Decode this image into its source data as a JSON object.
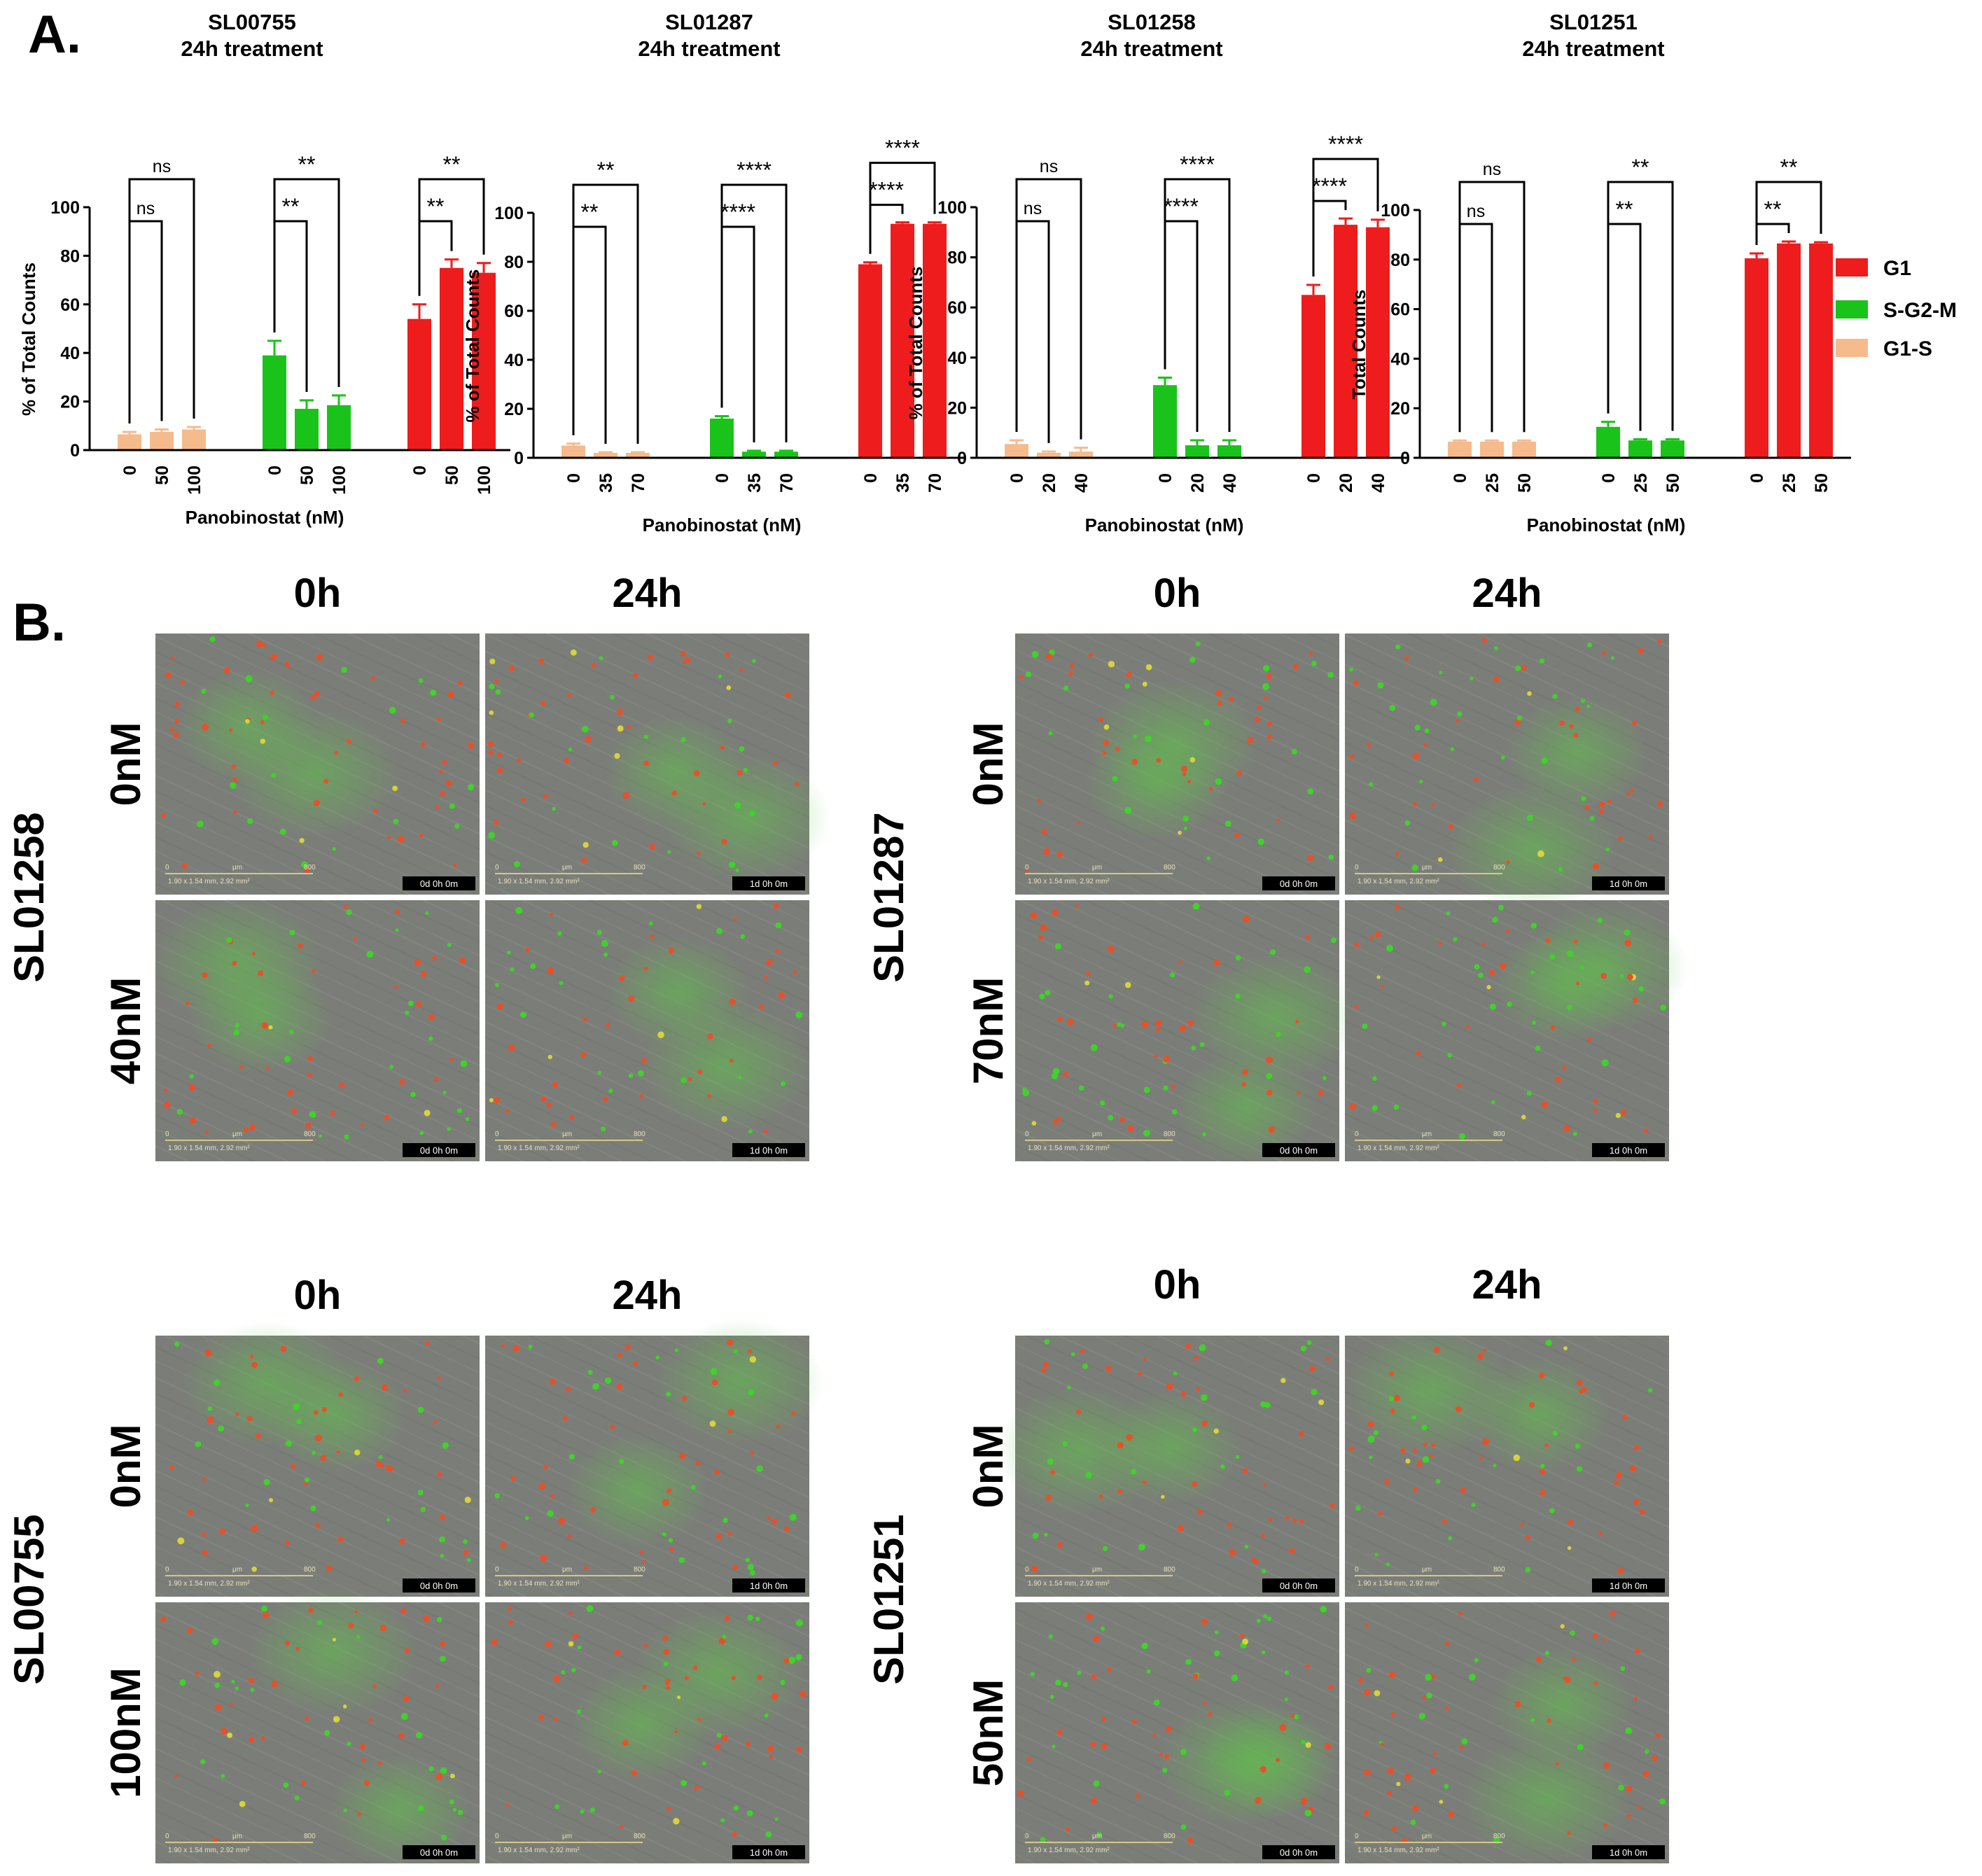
{
  "panel_a_label": "A.",
  "panel_b_label": "B.",
  "legend": {
    "items": [
      {
        "label": "G1",
        "color": "#ee1c1c"
      },
      {
        "label": "S-G2-M",
        "color": "#19c319"
      },
      {
        "label": "G1-S",
        "color": "#f5bb8d"
      }
    ]
  },
  "microscopy": {
    "time_labels": [
      "0h",
      "24h"
    ],
    "scale_text": "1.90 x 1.54 mm, 2.92 mm²",
    "scale_unit": "μm",
    "scale_zero": "0",
    "scale_max": "800",
    "timestamps": {
      "t0": "0d 0h 0m",
      "t24": "1d 0h 0m"
    },
    "blocks": [
      {
        "sample": "SL01258",
        "doses": [
          "0nM",
          "40nM"
        ]
      },
      {
        "sample": "SL01287",
        "doses": [
          "0nM",
          "70nM"
        ]
      },
      {
        "sample": "SL00755",
        "doses": [
          "0nM",
          "100nM"
        ]
      },
      {
        "sample": "SL01251",
        "doses": [
          "0nM",
          "50nM"
        ]
      }
    ]
  },
  "chart_data": [
    {
      "type": "bar",
      "title": "SL00755",
      "subtitle": "24h treatment",
      "ylabel": "% of Total Counts",
      "xlabel": "Panobinostat (nM)",
      "ylim": [
        0,
        100
      ],
      "yticks": [
        0,
        20,
        40,
        60,
        80,
        100
      ],
      "groups": [
        {
          "name": "G1-S",
          "color": "#f5bb8d",
          "categories": [
            "0",
            "50",
            "100"
          ],
          "values": [
            6.5,
            7.5,
            8.5
          ],
          "errors": [
            1,
            1,
            1
          ]
        },
        {
          "name": "S-G2-M",
          "color": "#19c319",
          "categories": [
            "0",
            "50",
            "100"
          ],
          "values": [
            39,
            17,
            18.5
          ],
          "errors": [
            6,
            3.5,
            4
          ]
        },
        {
          "name": "G1",
          "color": "#ee1c1c",
          "categories": [
            "0",
            "50",
            "100"
          ],
          "values": [
            54,
            75,
            73
          ],
          "errors": [
            6,
            3.5,
            4
          ]
        }
      ],
      "significance": [
        {
          "inner": "ns",
          "outer": "ns"
        },
        {
          "inner": "**",
          "outer": "**"
        },
        {
          "inner": "**",
          "outer": "**"
        }
      ]
    },
    {
      "type": "bar",
      "title": "SL01287",
      "subtitle": "24h treatment",
      "ylabel": "% of Total Counts",
      "xlabel": "Panobinostat (nM)",
      "ylim": [
        0,
        100
      ],
      "yticks": [
        0,
        20,
        40,
        60,
        80,
        100
      ],
      "groups": [
        {
          "name": "G1-S",
          "color": "#f5bb8d",
          "categories": [
            "0",
            "35",
            "70"
          ],
          "values": [
            5,
            2,
            2
          ],
          "errors": [
            0.8,
            0.3,
            0.3
          ]
        },
        {
          "name": "S-G2-M",
          "color": "#19c319",
          "categories": [
            "0",
            "35",
            "70"
          ],
          "values": [
            16,
            2.5,
            2.5
          ],
          "errors": [
            1,
            0.4,
            0.4
          ]
        },
        {
          "name": "G1",
          "color": "#ee1c1c",
          "categories": [
            "0",
            "35",
            "70"
          ],
          "values": [
            79,
            95.5,
            95.5
          ],
          "errors": [
            0.8,
            0.6,
            0.6
          ]
        }
      ],
      "significance": [
        {
          "inner": "**",
          "outer": "**"
        },
        {
          "inner": "****",
          "outer": "****"
        },
        {
          "inner": "****",
          "outer": "****"
        }
      ]
    },
    {
      "type": "bar",
      "title": "SL01258",
      "subtitle": "24h treatment",
      "ylabel": "% of Total Counts",
      "xlabel": "Panobinostat (nM)",
      "ylim": [
        0,
        100
      ],
      "yticks": [
        0,
        20,
        40,
        60,
        80,
        100
      ],
      "groups": [
        {
          "name": "G1-S",
          "color": "#f5bb8d",
          "categories": [
            "0",
            "20",
            "40"
          ],
          "values": [
            5.5,
            2,
            2.5
          ],
          "errors": [
            1.5,
            0.5,
            1.5
          ]
        },
        {
          "name": "S-G2-M",
          "color": "#19c319",
          "categories": [
            "0",
            "20",
            "40"
          ],
          "values": [
            29,
            5,
            5
          ],
          "errors": [
            3,
            2,
            2
          ]
        },
        {
          "name": "G1",
          "color": "#ee1c1c",
          "categories": [
            "0",
            "20",
            "40"
          ],
          "values": [
            65,
            93,
            92
          ],
          "errors": [
            4,
            2.5,
            3
          ]
        }
      ],
      "significance": [
        {
          "inner": "ns",
          "outer": "ns"
        },
        {
          "inner": "****",
          "outer": "****"
        },
        {
          "inner": "****",
          "outer": "****"
        }
      ]
    },
    {
      "type": "bar",
      "title": "SL01251",
      "subtitle": "24h treatment",
      "ylabel": "Total Counts",
      "xlabel": "Panobinostat (nM)",
      "ylim": [
        0,
        100
      ],
      "yticks": [
        0,
        20,
        40,
        60,
        80,
        100
      ],
      "groups": [
        {
          "name": "G1-S",
          "color": "#f5bb8d",
          "categories": [
            "0",
            "25",
            "50"
          ],
          "values": [
            6.5,
            6.5,
            6.5
          ],
          "errors": [
            0.5,
            0.5,
            0.5
          ]
        },
        {
          "name": "S-G2-M",
          "color": "#19c319",
          "categories": [
            "0",
            "25",
            "50"
          ],
          "values": [
            12.5,
            7,
            7
          ],
          "errors": [
            2,
            0.5,
            0.5
          ]
        },
        {
          "name": "G1",
          "color": "#ee1c1c",
          "categories": [
            "0",
            "25",
            "50"
          ],
          "values": [
            80.5,
            86.5,
            86.5
          ],
          "errors": [
            2,
            0.8,
            0.5
          ]
        }
      ],
      "significance": [
        {
          "inner": "ns",
          "outer": "ns"
        },
        {
          "inner": "**",
          "outer": "**"
        },
        {
          "inner": "**",
          "outer": "**"
        }
      ]
    }
  ]
}
